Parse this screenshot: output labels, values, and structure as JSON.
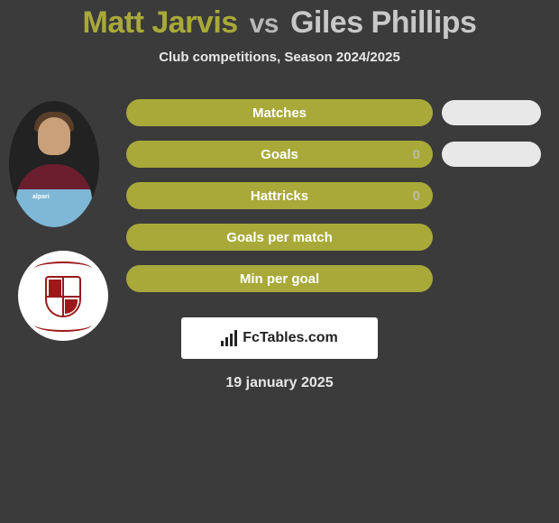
{
  "title": {
    "player1": "Matt Jarvis",
    "vs": "vs",
    "player2": "Giles Phillips"
  },
  "subtitle": "Club competitions, Season 2024/2025",
  "colors": {
    "bar_left": "#a9a93a",
    "pill_right": "#e8e8e8",
    "background": "#3b3b3b",
    "crest_accent": "#9a1a1a"
  },
  "avatar1": {
    "kit_sponsor": "alpari"
  },
  "bars": [
    {
      "label": "Matches",
      "value_left": null,
      "pill_right": true
    },
    {
      "label": "Goals",
      "value_left": "0",
      "pill_right": true
    },
    {
      "label": "Hattricks",
      "value_left": "0",
      "pill_right": false
    },
    {
      "label": "Goals per match",
      "value_left": null,
      "pill_right": false
    },
    {
      "label": "Min per goal",
      "value_left": null,
      "pill_right": false
    }
  ],
  "right_pill_tops": [
    8,
    60
  ],
  "footer": {
    "brand": "FcTables.com"
  },
  "date": "19 january 2025"
}
